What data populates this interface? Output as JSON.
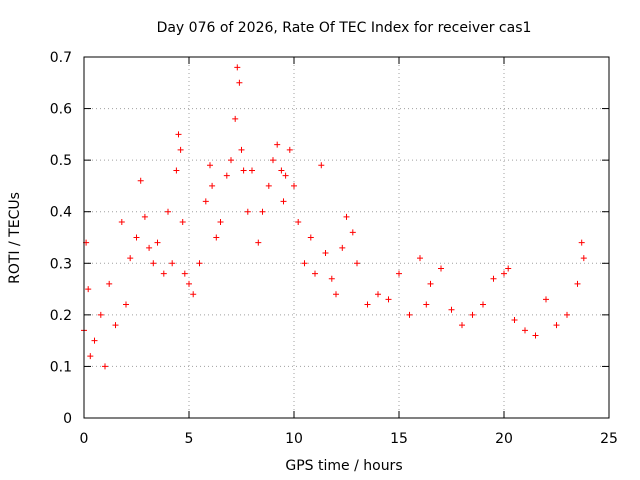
{
  "chart_data": {
    "type": "scatter",
    "title": "Day 076 of 2026, Rate Of TEC Index for receiver cas1",
    "xlabel": "GPS time / hours",
    "ylabel": "ROTI / TECUs",
    "xlim": [
      0,
      25
    ],
    "ylim": [
      0,
      0.7
    ],
    "xticks": [
      "0",
      "5",
      "10",
      "15",
      "20",
      "25"
    ],
    "yticks": [
      "0",
      "0.1",
      "0.2",
      "0.3",
      "0.4",
      "0.5",
      "0.6",
      "0.7"
    ],
    "grid": true,
    "marker": "+",
    "series": [
      {
        "color": "#ff0000",
        "x": [
          0.0,
          0.1,
          0.2,
          0.3,
          0.5,
          0.8,
          1.0,
          1.2,
          1.5,
          1.8,
          2.0,
          2.2,
          2.5,
          2.7,
          2.9,
          3.1,
          3.3,
          3.5,
          3.8,
          4.0,
          4.2,
          4.4,
          4.5,
          4.6,
          4.7,
          4.8,
          5.0,
          5.2,
          5.5,
          5.8,
          6.0,
          6.1,
          6.3,
          6.5,
          6.8,
          7.0,
          7.2,
          7.3,
          7.4,
          7.5,
          7.6,
          7.8,
          8.0,
          8.3,
          8.5,
          8.8,
          9.0,
          9.2,
          9.4,
          9.5,
          9.6,
          9.8,
          10.0,
          10.2,
          10.5,
          10.8,
          11.0,
          11.3,
          11.5,
          11.8,
          12.0,
          12.3,
          12.5,
          12.8,
          13.0,
          13.5,
          14.0,
          14.5,
          15.0,
          15.5,
          16.0,
          16.3,
          16.5,
          17.0,
          17.5,
          18.0,
          18.5,
          19.0,
          19.5,
          20.0,
          20.2,
          20.5,
          21.0,
          21.5,
          22.0,
          22.5,
          23.0,
          23.5,
          23.7,
          23.8
        ],
        "y": [
          0.17,
          0.34,
          0.25,
          0.12,
          0.15,
          0.2,
          0.1,
          0.26,
          0.18,
          0.38,
          0.22,
          0.31,
          0.35,
          0.46,
          0.39,
          0.33,
          0.3,
          0.34,
          0.28,
          0.4,
          0.3,
          0.48,
          0.55,
          0.52,
          0.38,
          0.28,
          0.26,
          0.24,
          0.3,
          0.42,
          0.49,
          0.45,
          0.35,
          0.38,
          0.47,
          0.5,
          0.58,
          0.68,
          0.65,
          0.52,
          0.48,
          0.4,
          0.48,
          0.34,
          0.4,
          0.45,
          0.5,
          0.53,
          0.48,
          0.42,
          0.47,
          0.52,
          0.45,
          0.38,
          0.3,
          0.35,
          0.28,
          0.49,
          0.32,
          0.27,
          0.24,
          0.33,
          0.39,
          0.36,
          0.3,
          0.22,
          0.24,
          0.23,
          0.28,
          0.2,
          0.31,
          0.22,
          0.26,
          0.29,
          0.21,
          0.18,
          0.2,
          0.22,
          0.27,
          0.28,
          0.29,
          0.19,
          0.17,
          0.16,
          0.23,
          0.18,
          0.2,
          0.26,
          0.34,
          0.31
        ]
      }
    ]
  }
}
